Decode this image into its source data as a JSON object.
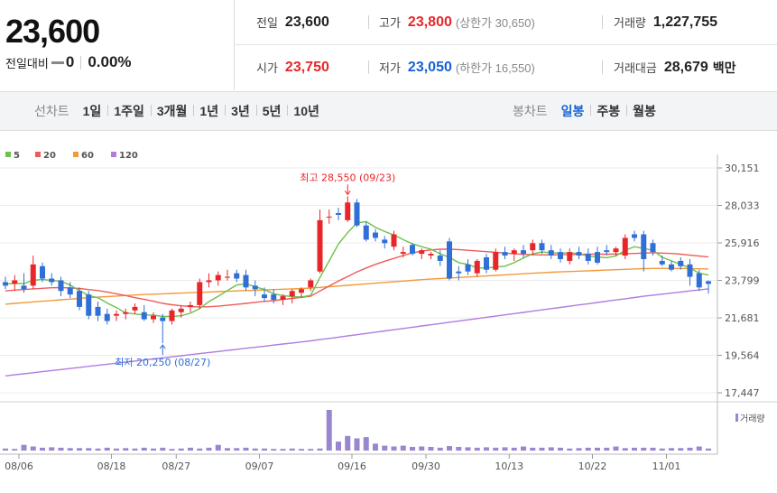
{
  "summary": {
    "price": "23,600",
    "change_label": "전일대비",
    "change_value": "0",
    "change_pct": "0.00%"
  },
  "stats": {
    "prev_label": "전일",
    "prev": "23,600",
    "high_label": "고가",
    "high": "23,800",
    "upper_limit": "(상한가 30,650)",
    "volume_label": "거래량",
    "volume": "1,227,755",
    "open_label": "시가",
    "open": "23,750",
    "low_label": "저가",
    "low": "23,050",
    "lower_limit": "(하한가 16,550)",
    "amount_label": "거래대금",
    "amount": "28,679",
    "amount_unit": "백만"
  },
  "toolbar": {
    "line_label": "선차트",
    "line_items": [
      "1일",
      "1주일",
      "3개월",
      "1년",
      "3년",
      "5년",
      "10년"
    ],
    "candle_label": "봉차트",
    "candle_items": [
      "일봉",
      "주봉",
      "월봉"
    ],
    "candle_active": 0
  },
  "colors": {
    "up": "#e8262a",
    "down": "#2f6fd6",
    "ma5": "#6cc24a",
    "ma20": "#ef5b5b",
    "ma60": "#f29a3a",
    "ma120": "#b07ce0",
    "volume": "#9a86cf"
  },
  "chart_data": {
    "type": "candlestick",
    "legend": [
      {
        "name": "5",
        "color": "#6cc24a"
      },
      {
        "name": "20",
        "color": "#ef5b5b"
      },
      {
        "name": "60",
        "color": "#f29a3a"
      },
      {
        "name": "120",
        "color": "#b07ce0"
      }
    ],
    "y_ticks": [
      "30,151",
      "28,033",
      "25,916",
      "23,799",
      "21,681",
      "19,564",
      "17,447"
    ],
    "ylim": [
      17447,
      30151
    ],
    "x_ticks": [
      {
        "label": "08/06",
        "index": 0
      },
      {
        "label": "08/18",
        "index": 10
      },
      {
        "label": "08/27",
        "index": 17
      },
      {
        "label": "09/07",
        "index": 26
      },
      {
        "label": "09/16",
        "index": 36
      },
      {
        "label": "09/30",
        "index": 44
      },
      {
        "label": "10/13",
        "index": 53
      },
      {
        "label": "10/22",
        "index": 62
      },
      {
        "label": "11/01",
        "index": 70
      }
    ],
    "annotations": {
      "high": "최고 28,550 (09/23)",
      "high_index": 37,
      "high_value": 28550,
      "low": "최저 20,250 (08/27)",
      "low_index": 17,
      "low_value": 20250
    },
    "volume_label": "거래량",
    "candles": [
      {
        "o": 23700,
        "h": 24000,
        "l": 23300,
        "c": 23500
      },
      {
        "o": 23600,
        "h": 24100,
        "l": 23200,
        "c": 23800
      },
      {
        "o": 23500,
        "h": 24200,
        "l": 23100,
        "c": 23300
      },
      {
        "o": 23500,
        "h": 25200,
        "l": 23300,
        "c": 24700
      },
      {
        "o": 24600,
        "h": 24800,
        "l": 23700,
        "c": 23900
      },
      {
        "o": 23900,
        "h": 24200,
        "l": 23500,
        "c": 23700
      },
      {
        "o": 23800,
        "h": 24000,
        "l": 22900,
        "c": 23200
      },
      {
        "o": 23400,
        "h": 23700,
        "l": 22800,
        "c": 23000
      },
      {
        "o": 23200,
        "h": 23400,
        "l": 22100,
        "c": 22300
      },
      {
        "o": 23000,
        "h": 23200,
        "l": 21600,
        "c": 21800
      },
      {
        "o": 22300,
        "h": 22600,
        "l": 21500,
        "c": 21800
      },
      {
        "o": 21900,
        "h": 22200,
        "l": 21300,
        "c": 21500
      },
      {
        "o": 21800,
        "h": 22100,
        "l": 21500,
        "c": 21900
      },
      {
        "o": 21900,
        "h": 22200,
        "l": 21600,
        "c": 22000
      },
      {
        "o": 22100,
        "h": 22500,
        "l": 21900,
        "c": 22300
      },
      {
        "o": 22000,
        "h": 22400,
        "l": 21500,
        "c": 21600
      },
      {
        "o": 21600,
        "h": 22000,
        "l": 21400,
        "c": 21800
      },
      {
        "o": 21700,
        "h": 21900,
        "l": 20250,
        "c": 21500
      },
      {
        "o": 21500,
        "h": 22200,
        "l": 21300,
        "c": 22100
      },
      {
        "o": 22000,
        "h": 22400,
        "l": 21700,
        "c": 22200
      },
      {
        "o": 22300,
        "h": 22600,
        "l": 22000,
        "c": 22400
      },
      {
        "o": 22400,
        "h": 23900,
        "l": 22200,
        "c": 23700
      },
      {
        "o": 23700,
        "h": 24200,
        "l": 23400,
        "c": 23800
      },
      {
        "o": 23800,
        "h": 24300,
        "l": 23500,
        "c": 24100
      },
      {
        "o": 24000,
        "h": 24400,
        "l": 23800,
        "c": 24000
      },
      {
        "o": 24200,
        "h": 24400,
        "l": 23700,
        "c": 23900
      },
      {
        "o": 24100,
        "h": 24400,
        "l": 23200,
        "c": 23400
      },
      {
        "o": 23500,
        "h": 23800,
        "l": 22900,
        "c": 23300
      },
      {
        "o": 23000,
        "h": 23400,
        "l": 22600,
        "c": 22800
      },
      {
        "o": 23000,
        "h": 23300,
        "l": 22500,
        "c": 22700
      },
      {
        "o": 22700,
        "h": 23000,
        "l": 22400,
        "c": 22900
      },
      {
        "o": 22900,
        "h": 23300,
        "l": 22500,
        "c": 23200
      },
      {
        "o": 23100,
        "h": 23400,
        "l": 22800,
        "c": 23300
      },
      {
        "o": 23400,
        "h": 23900,
        "l": 23200,
        "c": 23800
      },
      {
        "o": 24300,
        "h": 27800,
        "l": 24200,
        "c": 27200
      },
      {
        "o": 27400,
        "h": 27800,
        "l": 27000,
        "c": 27400
      },
      {
        "o": 27600,
        "h": 27900,
        "l": 27200,
        "c": 27500
      },
      {
        "o": 27200,
        "h": 28550,
        "l": 27100,
        "c": 28200
      },
      {
        "o": 28200,
        "h": 28400,
        "l": 26800,
        "c": 26900
      },
      {
        "o": 26900,
        "h": 27100,
        "l": 26000,
        "c": 26100
      },
      {
        "o": 26500,
        "h": 26700,
        "l": 26000,
        "c": 26200
      },
      {
        "o": 26100,
        "h": 26300,
        "l": 25600,
        "c": 25900
      },
      {
        "o": 25700,
        "h": 26600,
        "l": 25500,
        "c": 26400
      },
      {
        "o": 25300,
        "h": 25700,
        "l": 25100,
        "c": 25400
      },
      {
        "o": 25800,
        "h": 25900,
        "l": 25200,
        "c": 25300
      },
      {
        "o": 25300,
        "h": 25600,
        "l": 25000,
        "c": 25500
      },
      {
        "o": 25200,
        "h": 25400,
        "l": 25000,
        "c": 25300
      },
      {
        "o": 25200,
        "h": 25500,
        "l": 24600,
        "c": 24900
      },
      {
        "o": 26000,
        "h": 26200,
        "l": 23800,
        "c": 23900
      },
      {
        "o": 24300,
        "h": 24600,
        "l": 23800,
        "c": 24200
      },
      {
        "o": 24700,
        "h": 25000,
        "l": 24100,
        "c": 24300
      },
      {
        "o": 24200,
        "h": 25000,
        "l": 24000,
        "c": 24900
      },
      {
        "o": 25100,
        "h": 25300,
        "l": 24200,
        "c": 24400
      },
      {
        "o": 24400,
        "h": 25600,
        "l": 24300,
        "c": 25400
      },
      {
        "o": 25400,
        "h": 25700,
        "l": 25000,
        "c": 25200
      },
      {
        "o": 25300,
        "h": 25600,
        "l": 24900,
        "c": 25500
      },
      {
        "o": 25500,
        "h": 25800,
        "l": 25100,
        "c": 25300
      },
      {
        "o": 25500,
        "h": 26100,
        "l": 25200,
        "c": 25900
      },
      {
        "o": 25900,
        "h": 26100,
        "l": 25300,
        "c": 25500
      },
      {
        "o": 25500,
        "h": 25800,
        "l": 25000,
        "c": 25200
      },
      {
        "o": 25400,
        "h": 25600,
        "l": 24800,
        "c": 25000
      },
      {
        "o": 24900,
        "h": 25600,
        "l": 24700,
        "c": 25400
      },
      {
        "o": 25400,
        "h": 25700,
        "l": 25000,
        "c": 25200
      },
      {
        "o": 25300,
        "h": 25600,
        "l": 24700,
        "c": 24900
      },
      {
        "o": 25400,
        "h": 25700,
        "l": 24700,
        "c": 24800
      },
      {
        "o": 25500,
        "h": 25800,
        "l": 25200,
        "c": 25400
      },
      {
        "o": 25400,
        "h": 25700,
        "l": 25200,
        "c": 25600
      },
      {
        "o": 25200,
        "h": 26400,
        "l": 25000,
        "c": 26200
      },
      {
        "o": 26400,
        "h": 26600,
        "l": 26000,
        "c": 26200
      },
      {
        "o": 26400,
        "h": 26600,
        "l": 24300,
        "c": 25000
      },
      {
        "o": 25900,
        "h": 26100,
        "l": 25200,
        "c": 25400
      },
      {
        "o": 24900,
        "h": 25200,
        "l": 24600,
        "c": 24700
      },
      {
        "o": 24700,
        "h": 24900,
        "l": 24300,
        "c": 24400
      },
      {
        "o": 24900,
        "h": 25100,
        "l": 24400,
        "c": 24600
      },
      {
        "o": 24700,
        "h": 25000,
        "l": 23500,
        "c": 24000
      },
      {
        "o": 24200,
        "h": 24400,
        "l": 23200,
        "c": 23400
      },
      {
        "o": 23750,
        "h": 23800,
        "l": 23050,
        "c": 23600
      }
    ],
    "ma5": [
      23600,
      23630,
      23620,
      23800,
      23850,
      23790,
      23760,
      23530,
      23220,
      22940,
      22820,
      22520,
      22260,
      21960,
      21900,
      21840,
      21840,
      21760,
      21760,
      21800,
      21940,
      22200,
      22600,
      22900,
      23220,
      23540,
      23600,
      23440,
      23280,
      23040,
      22940,
      22880,
      22860,
      22950,
      23960,
      24900,
      25850,
      26500,
      27040,
      27120,
      26800,
      26560,
      26360,
      26100,
      25860,
      25700,
      25560,
      25300,
      25100,
      24800,
      24700,
      24500,
      24500,
      24550,
      24600,
      24800,
      25060,
      25300,
      25400,
      25360,
      25340,
      25360,
      25300,
      25160,
      25120,
      25080,
      25180,
      25500,
      25700,
      25600,
      25500,
      25100,
      24900,
      24700,
      24500,
      24200,
      24100
    ],
    "ma20": [
      23200,
      23250,
      23280,
      23320,
      23350,
      23380,
      23390,
      23370,
      23340,
      23280,
      23220,
      23140,
      23040,
      22940,
      22820,
      22720,
      22620,
      22500,
      22420,
      22360,
      22320,
      22300,
      22310,
      22340,
      22390,
      22440,
      22500,
      22560,
      22610,
      22650,
      22720,
      22780,
      22840,
      22900,
      23200,
      23480,
      23760,
      24020,
      24280,
      24500,
      24700,
      24880,
      25040,
      25200,
      25350,
      25450,
      25520,
      25560,
      25560,
      25540,
      25500,
      25460,
      25420,
      25380,
      25340,
      25300,
      25270,
      25250,
      25240,
      25240,
      25250,
      25260,
      25270,
      25280,
      25280,
      25280,
      25290,
      25300,
      25320,
      25340,
      25360,
      25340,
      25320,
      25280,
      25220,
      25170,
      25120
    ],
    "ma60": [
      22450,
      22500,
      22540,
      22580,
      22620,
      22660,
      22700,
      22740,
      22780,
      22820,
      22850,
      22880,
      22910,
      22940,
      22970,
      23000,
      23020,
      23040,
      23060,
      23080,
      23100,
      23120,
      23140,
      23160,
      23180,
      23200,
      23220,
      23240,
      23260,
      23280,
      23300,
      23320,
      23340,
      23360,
      23400,
      23440,
      23480,
      23520,
      23560,
      23600,
      23640,
      23680,
      23720,
      23760,
      23800,
      23840,
      23870,
      23900,
      23930,
      23960,
      23990,
      24020,
      24050,
      24080,
      24110,
      24140,
      24170,
      24200,
      24230,
      24260,
      24280,
      24300,
      24320,
      24340,
      24360,
      24380,
      24400,
      24420,
      24440,
      24460,
      24470,
      24480,
      24480,
      24470,
      24460,
      24450,
      24440
    ],
    "ma120": [
      18400,
      18460,
      18520,
      18580,
      18640,
      18700,
      18760,
      18820,
      18880,
      18940,
      19000,
      19060,
      19120,
      19180,
      19240,
      19300,
      19360,
      19420,
      19480,
      19540,
      19600,
      19660,
      19720,
      19780,
      19840,
      19900,
      19960,
      20020,
      20080,
      20140,
      20200,
      20260,
      20320,
      20380,
      20450,
      20520,
      20590,
      20660,
      20730,
      20800,
      20870,
      20940,
      21010,
      21080,
      21150,
      21220,
      21290,
      21360,
      21430,
      21500,
      21570,
      21640,
      21710,
      21780,
      21850,
      21920,
      21990,
      22060,
      22130,
      22200,
      22270,
      22340,
      22410,
      22480,
      22550,
      22620,
      22690,
      22760,
      22830,
      22900,
      22960,
      23020,
      23080,
      23140,
      23200,
      23260,
      23320
    ],
    "volume": [
      0.05,
      0.04,
      0.14,
      0.1,
      0.07,
      0.08,
      0.07,
      0.06,
      0.06,
      0.06,
      0.05,
      0.07,
      0.05,
      0.06,
      0.05,
      0.07,
      0.05,
      0.07,
      0.04,
      0.05,
      0.07,
      0.05,
      0.07,
      0.14,
      0.06,
      0.06,
      0.07,
      0.05,
      0.05,
      0.04,
      0.04,
      0.05,
      0.04,
      0.04,
      0.05,
      1.0,
      0.22,
      0.36,
      0.3,
      0.33,
      0.17,
      0.12,
      0.1,
      0.12,
      0.09,
      0.1,
      0.09,
      0.07,
      0.11,
      0.09,
      0.08,
      0.07,
      0.08,
      0.07,
      0.08,
      0.07,
      0.1,
      0.07,
      0.07,
      0.08,
      0.07,
      0.05,
      0.06,
      0.07,
      0.07,
      0.07,
      0.1,
      0.06,
      0.07,
      0.07,
      0.07,
      0.05,
      0.06,
      0.06,
      0.07,
      0.1,
      0.05
    ]
  }
}
